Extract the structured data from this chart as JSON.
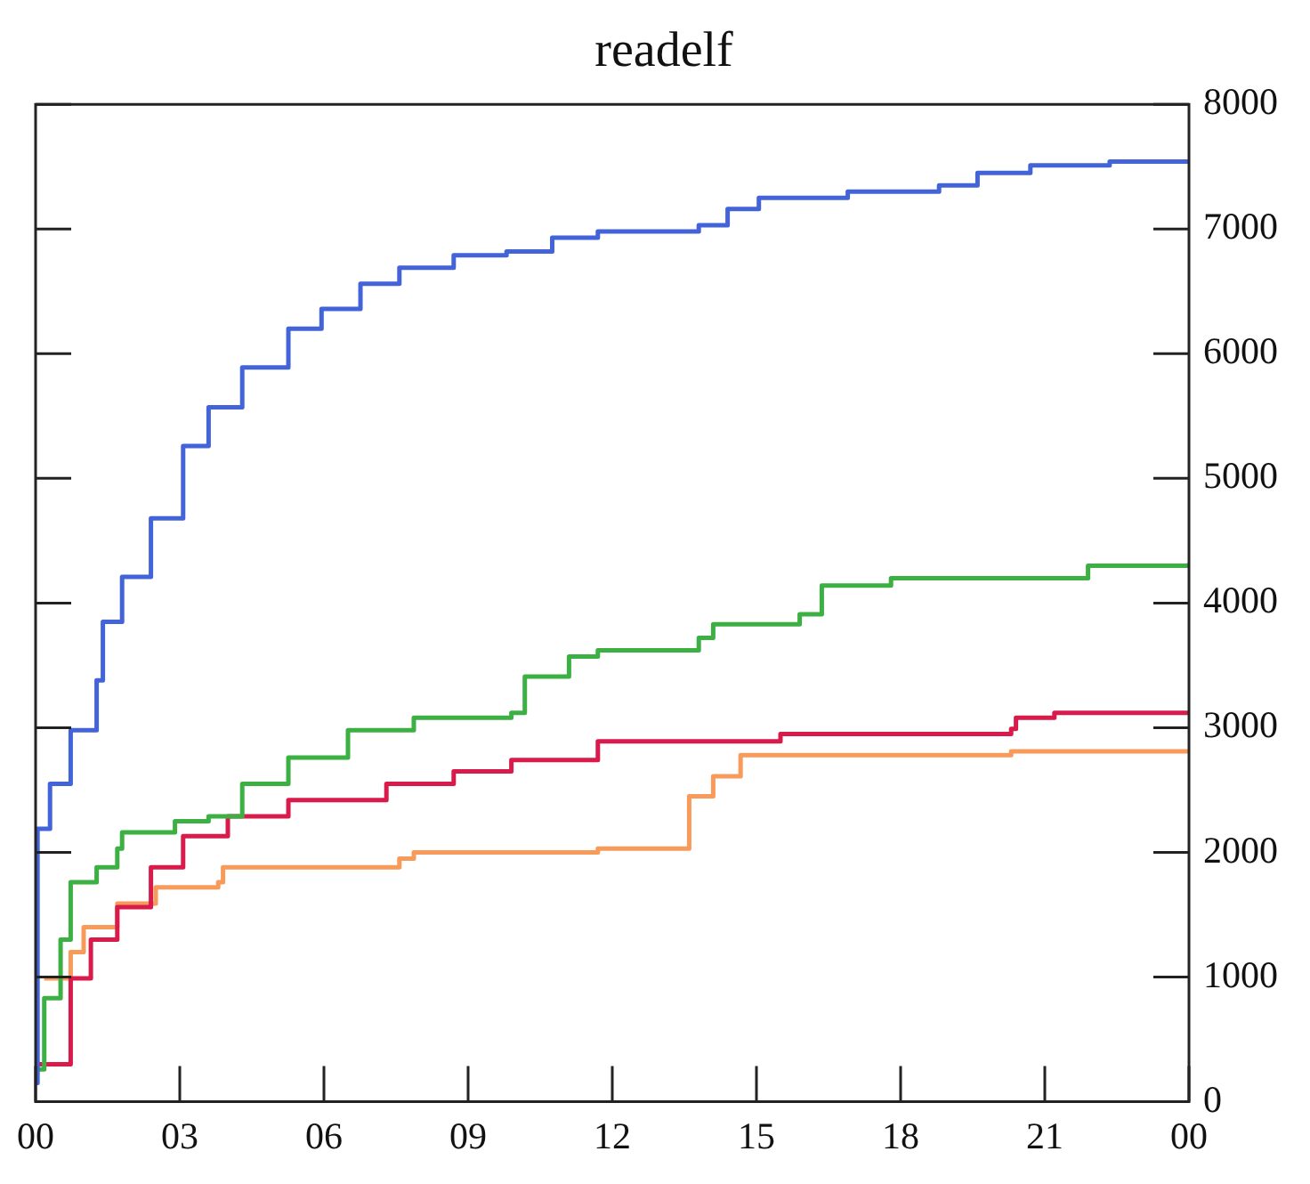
{
  "chart_data": {
    "type": "step",
    "title": "readelf",
    "xlim": [
      0,
      24
    ],
    "xticks": [
      {
        "value": 0,
        "label": "00"
      },
      {
        "value": 3,
        "label": "03"
      },
      {
        "value": 6,
        "label": "06"
      },
      {
        "value": 9,
        "label": "09"
      },
      {
        "value": 12,
        "label": "12"
      },
      {
        "value": 15,
        "label": "15"
      },
      {
        "value": 18,
        "label": "18"
      },
      {
        "value": 21,
        "label": "21"
      },
      {
        "value": 24,
        "label": "00"
      }
    ],
    "ylim": [
      0,
      8000
    ],
    "yticks": [
      0,
      1000,
      2000,
      3000,
      4000,
      5000,
      6000,
      7000,
      8000
    ],
    "grid": false,
    "legend": false,
    "marker": "none",
    "line_style": "solid",
    "series": [
      {
        "color": "#4363d8",
        "x": [
          0,
          0.04,
          0.3,
          0.73,
          1.27,
          1.4,
          1.8,
          2.4,
          3.07,
          3.6,
          4.3,
          5.26,
          5.95,
          6.76,
          7.57,
          8.7,
          9.8,
          10.75,
          11.7,
          13.8,
          14.4,
          15.05,
          16.9,
          18.8,
          19.6,
          20.7,
          22.35,
          24
        ],
        "values": [
          150,
          2190,
          2550,
          2980,
          3380,
          3850,
          4210,
          4680,
          5260,
          5570,
          5890,
          6200,
          6360,
          6560,
          6690,
          6790,
          6820,
          6930,
          6980,
          7030,
          7160,
          7250,
          7300,
          7350,
          7450,
          7510,
          7540,
          7550
        ]
      },
      {
        "color": "#3cb043",
        "x": [
          0,
          0.18,
          0.52,
          0.73,
          1.27,
          1.7,
          1.8,
          2.9,
          3.6,
          4.3,
          5.26,
          6.5,
          7.87,
          9.9,
          10.18,
          11.1,
          11.7,
          13.8,
          14.1,
          15.9,
          16.36,
          17.8,
          21.9,
          24
        ],
        "values": [
          260,
          830,
          1300,
          1760,
          1880,
          2030,
          2160,
          2250,
          2290,
          2550,
          2760,
          2980,
          3080,
          3120,
          3410,
          3570,
          3620,
          3720,
          3830,
          3910,
          4140,
          4200,
          4300,
          4320
        ]
      },
      {
        "color": "#d81b4a",
        "x": [
          0,
          0.73,
          1.15,
          1.7,
          2.4,
          3.07,
          4.0,
          5.26,
          7.3,
          8.7,
          9.9,
          11.7,
          15.5,
          20.3,
          20.4,
          21.2,
          24
        ],
        "values": [
          300,
          990,
          1300,
          1560,
          1880,
          2130,
          2290,
          2420,
          2550,
          2650,
          2740,
          2890,
          2950,
          2990,
          3080,
          3120,
          3120
        ]
      },
      {
        "color": "#f79a5a",
        "x": [
          0.18,
          0.73,
          1.0,
          1.7,
          2.5,
          3.8,
          3.9,
          7.57,
          7.87,
          11.7,
          13.6,
          14.1,
          14.67,
          20.3,
          24
        ],
        "values": [
          990,
          1200,
          1400,
          1590,
          1720,
          1760,
          1880,
          1950,
          2000,
          2030,
          2450,
          2610,
          2780,
          2810,
          2810
        ]
      }
    ]
  }
}
